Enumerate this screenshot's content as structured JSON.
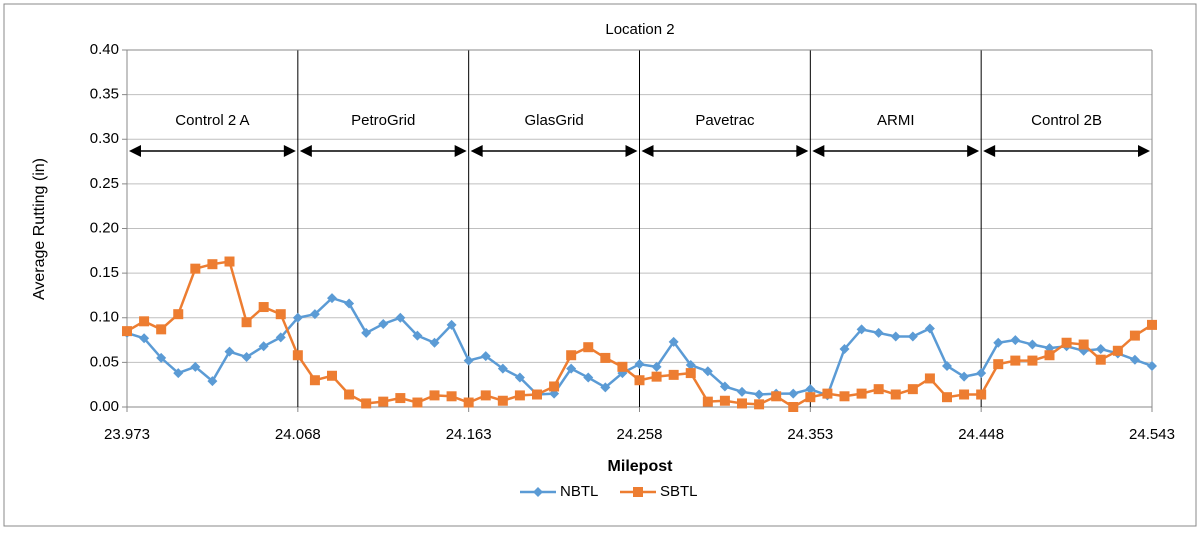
{
  "chart_data": {
    "type": "line",
    "title": "Location 2",
    "x_label": "Milepost",
    "y_label": "Average Rutting (in)",
    "sections": [
      "Control 2 A",
      "PetroGrid",
      "GlasGrid",
      "Pavetrac",
      "ARMI",
      "Control 2B"
    ],
    "x": [
      23.973,
      23.9825,
      23.992,
      24.0015,
      24.011,
      24.0205,
      24.03,
      24.0395,
      24.049,
      24.0585,
      24.068,
      24.0775,
      24.087,
      24.0965,
      24.106,
      24.1155,
      24.125,
      24.1345,
      24.144,
      24.1535,
      24.163,
      24.1725,
      24.182,
      24.1915,
      24.201,
      24.2105,
      24.22,
      24.2295,
      24.239,
      24.2485,
      24.258,
      24.2675,
      24.277,
      24.2865,
      24.296,
      24.3055,
      24.315,
      24.3245,
      24.334,
      24.3435,
      24.353,
      24.3625,
      24.372,
      24.3815,
      24.391,
      24.4005,
      24.41,
      24.4195,
      24.429,
      24.4385,
      24.448,
      24.4575,
      24.467,
      24.4765,
      24.486,
      24.4955,
      24.505,
      24.5145,
      24.524,
      24.5335,
      24.543
    ],
    "series": [
      {
        "name": "NBTL",
        "color": "#5b9bd5",
        "marker": "diamond",
        "values": [
          0.083,
          0.077,
          0.055,
          0.038,
          0.045,
          0.029,
          0.062,
          0.056,
          0.068,
          0.078,
          0.1,
          0.104,
          0.122,
          0.116,
          0.083,
          0.093,
          0.1,
          0.08,
          0.072,
          0.092,
          0.052,
          0.057,
          0.043,
          0.033,
          0.014,
          0.015,
          0.043,
          0.033,
          0.022,
          0.038,
          0.048,
          0.045,
          0.073,
          0.047,
          0.04,
          0.023,
          0.017,
          0.014,
          0.015,
          0.015,
          0.02,
          0.013,
          0.065,
          0.087,
          0.083,
          0.079,
          0.079,
          0.088,
          0.046,
          0.034,
          0.038,
          0.072,
          0.075,
          0.07,
          0.066,
          0.068,
          0.063,
          0.065,
          0.06,
          0.053,
          0.046
        ]
      },
      {
        "name": "SBTL",
        "color": "#ed7d31",
        "marker": "square",
        "values": [
          0.085,
          0.096,
          0.087,
          0.104,
          0.155,
          0.16,
          0.163,
          0.095,
          0.112,
          0.104,
          0.058,
          0.03,
          0.035,
          0.014,
          0.004,
          0.006,
          0.01,
          0.005,
          0.013,
          0.012,
          0.005,
          0.013,
          0.007,
          0.013,
          0.014,
          0.023,
          0.058,
          0.067,
          0.055,
          0.045,
          0.03,
          0.034,
          0.036,
          0.038,
          0.006,
          0.007,
          0.004,
          0.003,
          0.012,
          0.0,
          0.011,
          0.015,
          0.012,
          0.015,
          0.02,
          0.014,
          0.02,
          0.032,
          0.011,
          0.014,
          0.014,
          0.048,
          0.052,
          0.052,
          0.058,
          0.072,
          0.07,
          0.053,
          0.063,
          0.08,
          0.092
        ]
      }
    ],
    "xlim": [
      23.973,
      24.543
    ],
    "xticks": [
      23.973,
      24.068,
      24.163,
      24.258,
      24.353,
      24.448,
      24.543
    ],
    "ylim": [
      0,
      0.4
    ],
    "yticks": [
      {
        "value": 0,
        "label": "0.00"
      },
      0.05,
      {
        "value": 0.1,
        "label": "0.10"
      },
      0.15,
      {
        "value": 0.2,
        "label": "0.20"
      },
      0.25,
      {
        "value": 0.3,
        "label": "0.30"
      },
      0.35,
      {
        "value": 0.4,
        "label": "0.40"
      }
    ],
    "grid": true,
    "legend": "bottom"
  }
}
